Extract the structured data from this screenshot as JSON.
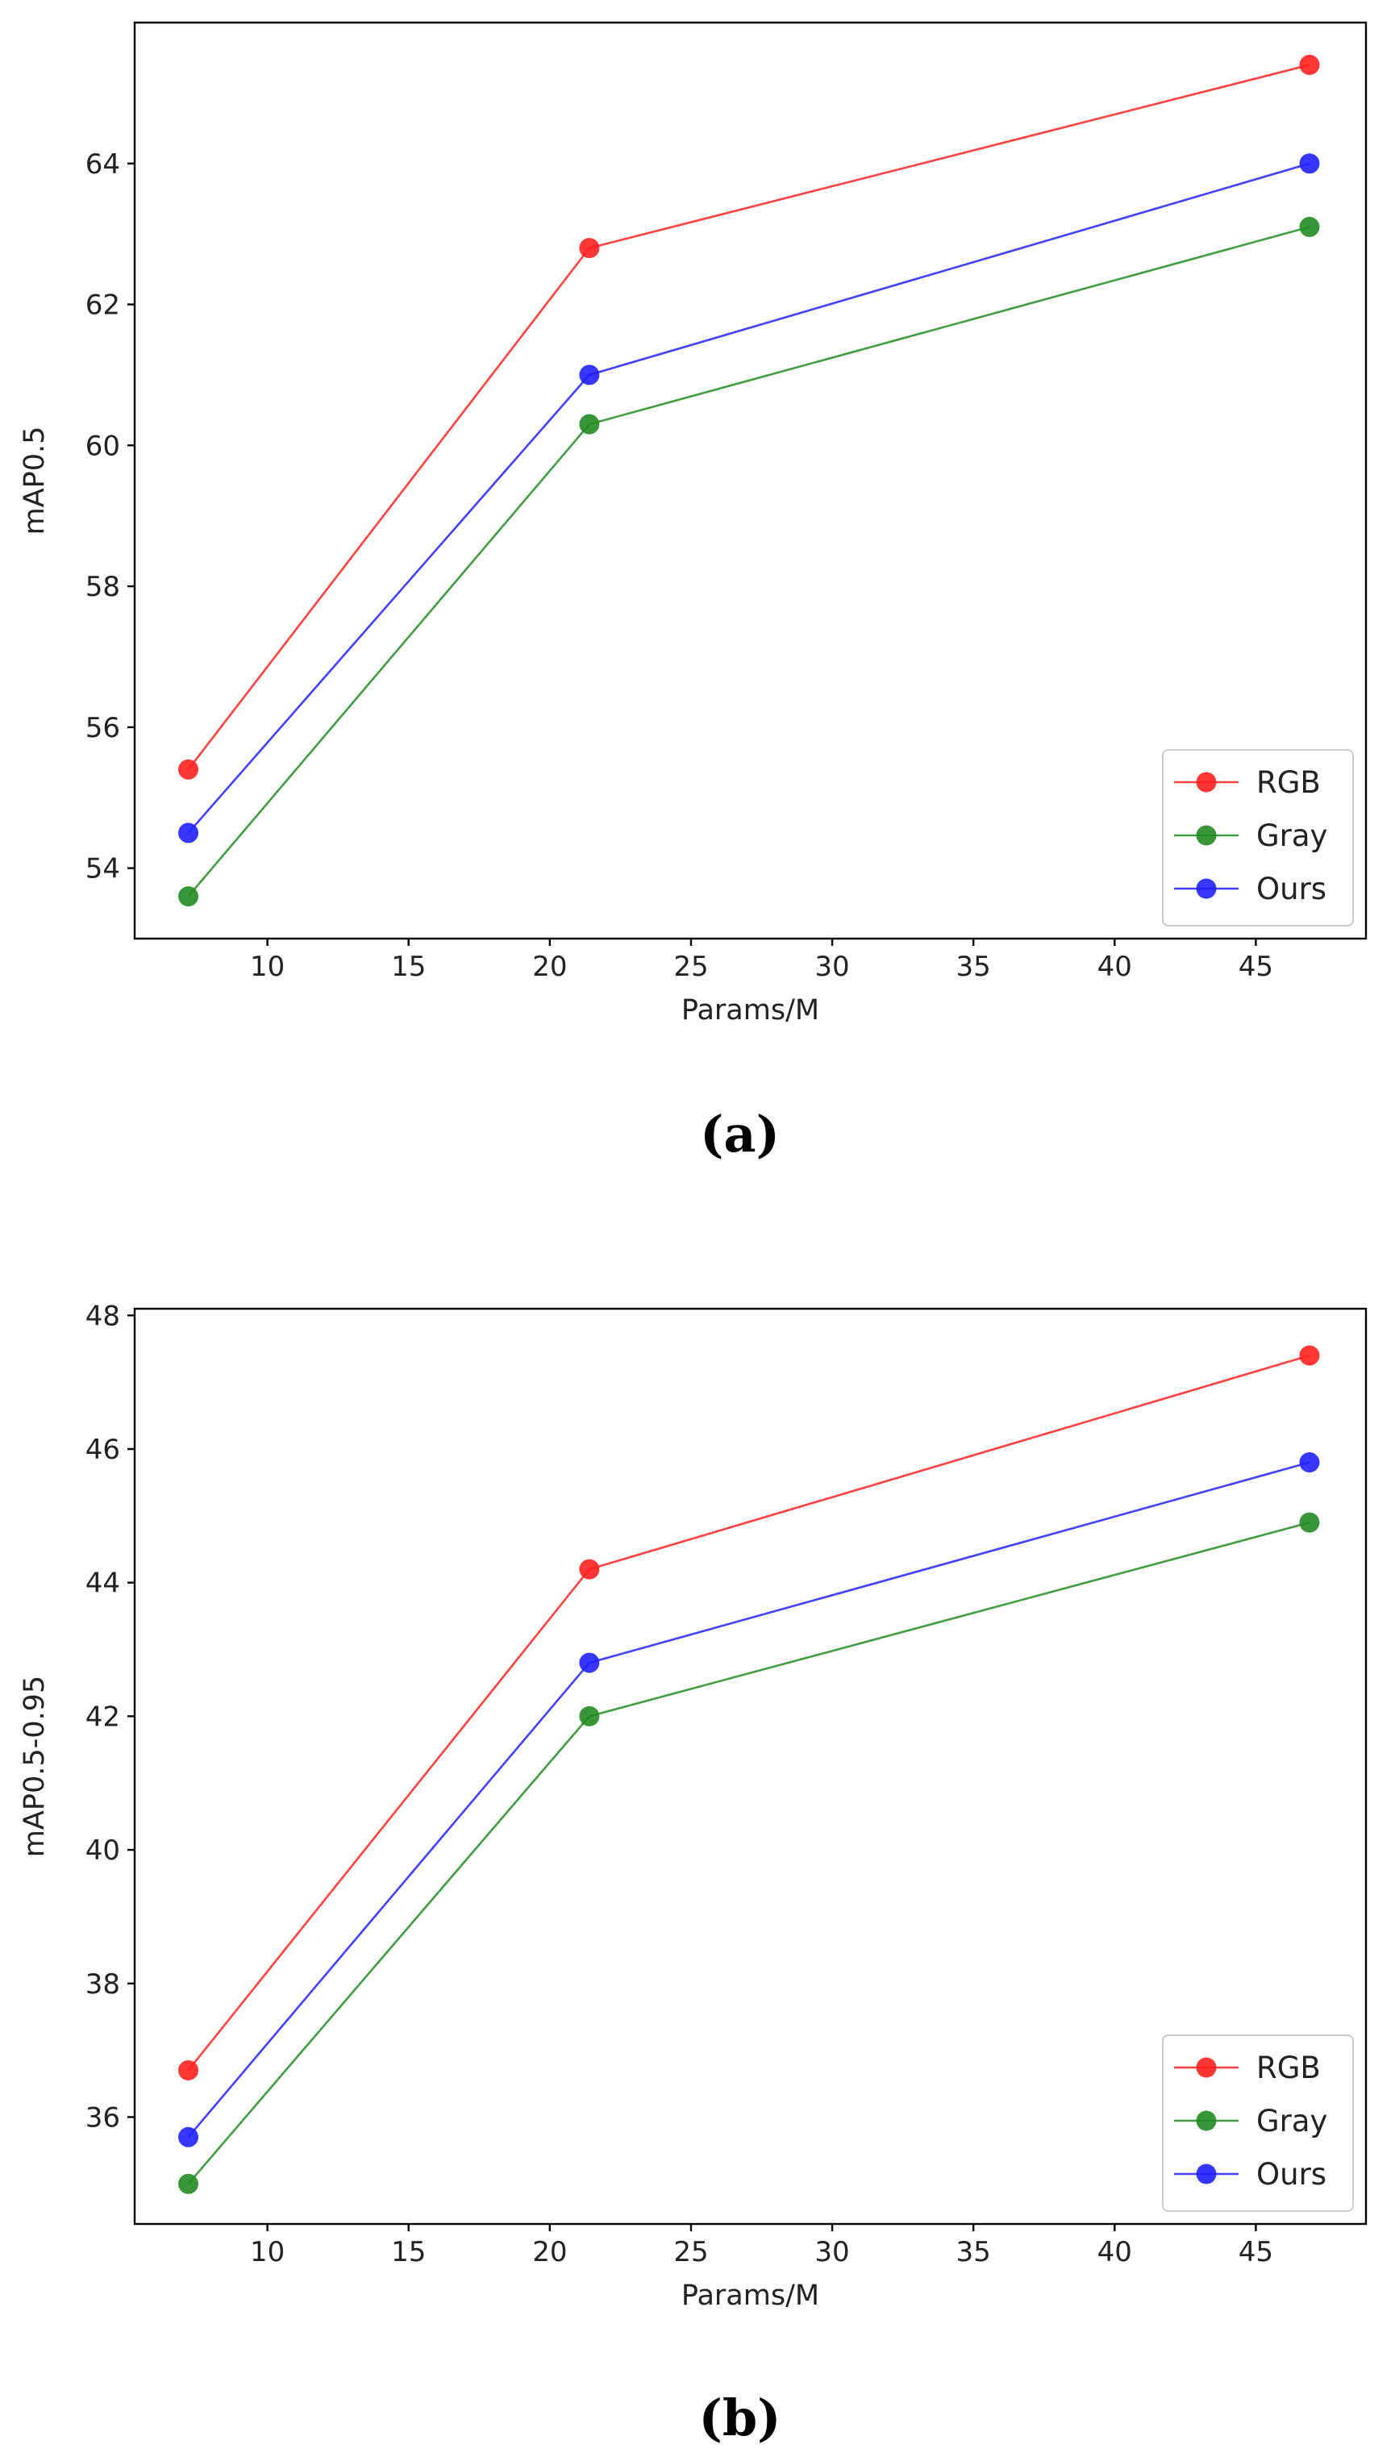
{
  "colors": {
    "RGB": "#ff2020",
    "Gray": "#228b22",
    "Ours": "#2020ff"
  },
  "chart_data": [
    {
      "type": "line",
      "caption": "(a)",
      "title": "",
      "xlabel": "Params/M",
      "ylabel": "mAP0.5",
      "xlim": [
        5.3,
        48.9
      ],
      "ylim": [
        53.0,
        66.0
      ],
      "xticks": [
        10,
        15,
        20,
        25,
        30,
        35,
        40,
        45
      ],
      "yticks": [
        54,
        56,
        58,
        60,
        62,
        64
      ],
      "grid": false,
      "legend_position": "lower-right",
      "x": [
        7.2,
        21.4,
        46.9
      ],
      "series": [
        {
          "name": "RGB",
          "values": [
            55.4,
            62.8,
            65.4
          ]
        },
        {
          "name": "Gray",
          "values": [
            53.6,
            60.3,
            63.1
          ]
        },
        {
          "name": "Ours",
          "values": [
            54.5,
            61.0,
            64.0
          ]
        }
      ]
    },
    {
      "type": "line",
      "caption": "(b)",
      "title": "",
      "xlabel": "Params/M",
      "ylabel": "mAP0.5-0.95",
      "xlim": [
        5.3,
        48.9
      ],
      "ylim": [
        34.4,
        48.1
      ],
      "xticks": [
        10,
        15,
        20,
        25,
        30,
        35,
        40,
        45
      ],
      "yticks": [
        36,
        38,
        40,
        42,
        44,
        46,
        48
      ],
      "grid": false,
      "legend_position": "lower-right",
      "x": [
        7.2,
        21.4,
        46.9
      ],
      "series": [
        {
          "name": "RGB",
          "values": [
            36.7,
            44.2,
            47.4
          ]
        },
        {
          "name": "Gray",
          "values": [
            35.0,
            42.0,
            44.9
          ]
        },
        {
          "name": "Ours",
          "values": [
            35.7,
            42.8,
            45.8
          ]
        }
      ]
    }
  ]
}
